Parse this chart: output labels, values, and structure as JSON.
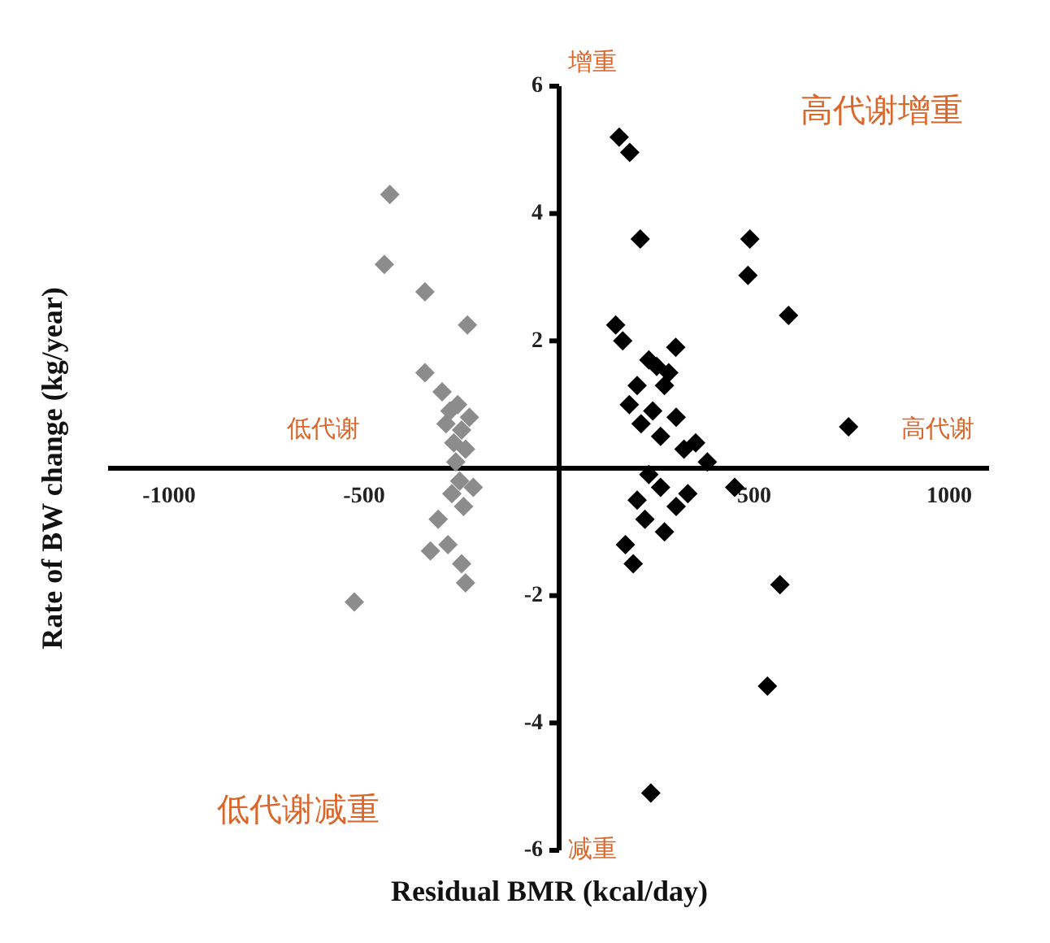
{
  "chart_data": {
    "type": "scatter",
    "xlabel": "Residual BMR (kcal/day)",
    "ylabel": "Rate of BW change (kg/year)",
    "xlim": [
      -1150,
      1100
    ],
    "xticks": [
      -1000,
      -500,
      500,
      1000
    ],
    "ylim": [
      -6,
      6
    ],
    "yticks": [
      6,
      4,
      2,
      -2,
      -4,
      -6
    ],
    "marker": "diamond",
    "grid": false,
    "legend": false,
    "annotations": [
      "增重",
      "高代谢增重",
      "低代谢",
      "高代谢",
      "低代谢减重",
      "减重"
    ],
    "series": [
      {
        "color": "#8c8c8c",
        "x": [
          -434,
          -448,
          -344,
          -235,
          -344,
          -300,
          -280,
          -260,
          -250,
          -240,
          -270,
          -290,
          -230,
          -255,
          -275,
          -245,
          -265,
          -310,
          -220,
          -285,
          -250,
          -330,
          -525,
          -240
        ],
        "values": [
          4.3,
          3.2,
          2.77,
          2.25,
          1.5,
          1.2,
          0.9,
          1.0,
          0.6,
          0.3,
          0.4,
          0.7,
          0.8,
          -0.2,
          -0.4,
          -0.6,
          0.1,
          -0.8,
          -0.3,
          -1.2,
          -1.5,
          -1.3,
          -2.1,
          -1.8
        ]
      },
      {
        "color": "#000000",
        "x": [
          154,
          181,
          208,
          489,
          484,
          588,
          145,
          163,
          299,
          281,
          230,
          250,
          270,
          200,
          180,
          210,
          240,
          260,
          300,
          320,
          350,
          380,
          260,
          230,
          200,
          220,
          270,
          300,
          742,
          566,
          534,
          235,
          170,
          190,
          330,
          450
        ],
        "values": [
          5.2,
          4.96,
          3.6,
          3.6,
          3.03,
          2.4,
          2.25,
          2.0,
          1.9,
          1.5,
          1.7,
          1.6,
          1.3,
          1.3,
          1.0,
          0.7,
          0.9,
          0.5,
          0.8,
          0.3,
          0.4,
          0.1,
          -0.3,
          -0.1,
          -0.5,
          -0.8,
          -1.0,
          -0.6,
          0.65,
          -1.83,
          -3.42,
          -5.1,
          -1.2,
          -1.5,
          -0.4,
          -0.3
        ]
      }
    ]
  }
}
